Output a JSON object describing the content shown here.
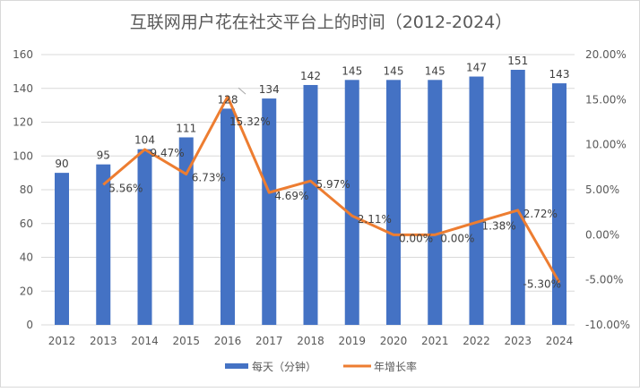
{
  "chart_data": {
    "type": "bar+line",
    "title": "互联网用户花在社交平台上的时间（2012-2024）",
    "categories": [
      "2012",
      "2013",
      "2014",
      "2015",
      "2016",
      "2017",
      "2018",
      "2019",
      "2020",
      "2021",
      "2022",
      "2023",
      "2024"
    ],
    "series": [
      {
        "name": "每天（分钟）",
        "type": "bar",
        "axis": "left",
        "color": "#4472C4",
        "values": [
          90,
          95,
          104,
          111,
          128,
          134,
          142,
          145,
          145,
          145,
          147,
          151,
          143
        ]
      },
      {
        "name": "年增长率",
        "type": "line",
        "axis": "right",
        "color": "#ED7D31",
        "values": [
          null,
          5.56,
          9.47,
          6.73,
          15.32,
          4.69,
          5.97,
          2.11,
          0.0,
          0.0,
          1.38,
          2.72,
          -5.3
        ],
        "labels": [
          "",
          "5.56%",
          "9.47%",
          "6.73%",
          "15.32%",
          "4.69%",
          "5.97%",
          "2.11%",
          "0.00%",
          "0.00%",
          "1.38%",
          "2.72%",
          "-5.30%"
        ]
      }
    ],
    "ylim_left": [
      0,
      160
    ],
    "yticks_left": [
      "0",
      "20",
      "40",
      "60",
      "80",
      "100",
      "120",
      "140",
      "160"
    ],
    "ylim_right": [
      -10,
      20
    ],
    "yticks_right": [
      "-10.00%",
      "-5.00%",
      "0.00%",
      "5.00%",
      "10.00%",
      "15.00%",
      "20.00%"
    ],
    "grid": true,
    "legend": "bottom"
  }
}
